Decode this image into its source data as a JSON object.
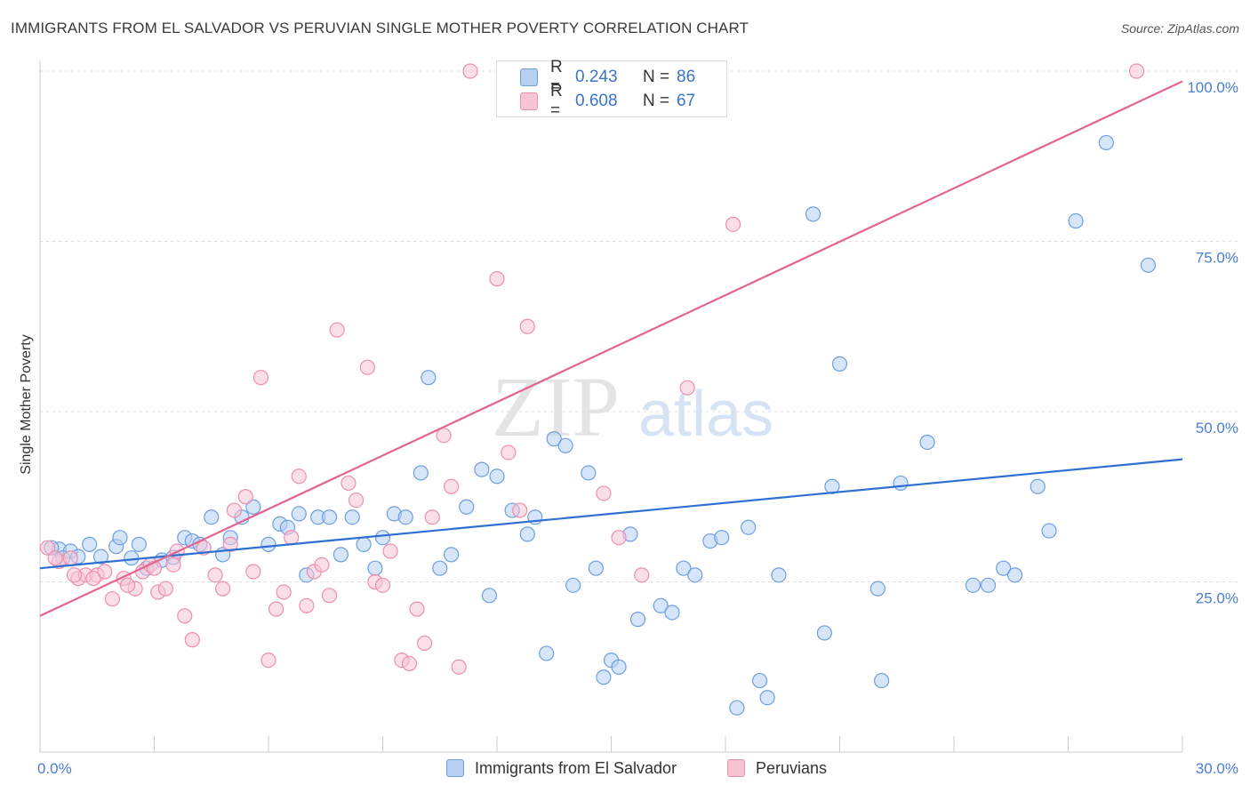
{
  "header": {
    "title": "IMMIGRANTS FROM EL SALVADOR VS PERUVIAN SINGLE MOTHER POVERTY CORRELATION CHART",
    "source": "Source: ZipAtlas.com"
  },
  "watermark": {
    "zip": "ZIP",
    "atlas": "atlas"
  },
  "colors": {
    "blue_fill": "#b7d0f2",
    "blue_stroke": "#6d9fe0",
    "blue_line": "#2e6fd1",
    "pink_fill": "#f8c5d5",
    "pink_stroke": "#ec8fae",
    "pink_line": "#e3648f",
    "tick_label": "#4a7fd4"
  },
  "legend": {
    "rows": [
      {
        "r_label": "R =",
        "r_value": "0.243",
        "n_label": "N =",
        "n_value": "86"
      },
      {
        "r_label": "R =",
        "r_value": "0.608",
        "n_label": "N =",
        "n_value": "67"
      }
    ]
  },
  "bottom_legend": {
    "series1": "Immigrants from El Salvador",
    "series2": "Peruvians"
  },
  "chart_data": {
    "type": "scatter",
    "title": "IMMIGRANTS FROM EL SALVADOR VS PERUVIAN SINGLE MOTHER POVERTY CORRELATION CHART",
    "xlabel": "",
    "ylabel": "Single Mother Poverty",
    "xlim": [
      0,
      30
    ],
    "ylim": [
      0,
      100
    ],
    "x_tick_labels": [
      "0.0%",
      "30.0%"
    ],
    "y_tick_labels": [
      "25.0%",
      "50.0%",
      "75.0%",
      "100.0%"
    ],
    "y_ticks": [
      25,
      50,
      75,
      100
    ],
    "grid": "horizontal dashed",
    "legend_position": "top-center",
    "series": [
      {
        "name": "Immigrants from El Salvador",
        "r": 0.243,
        "n": 86,
        "trend": {
          "x": [
            0,
            30
          ],
          "y": [
            27.0,
            43.0
          ]
        },
        "points": [
          [
            0.5,
            29.8
          ],
          [
            0.8,
            29.5
          ],
          [
            1.0,
            28.7
          ],
          [
            1.3,
            30.5
          ],
          [
            1.6,
            28.7
          ],
          [
            2.0,
            30.2
          ],
          [
            2.1,
            31.5
          ],
          [
            2.4,
            28.5
          ],
          [
            2.6,
            30.5
          ],
          [
            2.8,
            27.0
          ],
          [
            3.2,
            28.2
          ],
          [
            3.5,
            28.6
          ],
          [
            3.8,
            31.5
          ],
          [
            4.0,
            31.0
          ],
          [
            4.2,
            30.5
          ],
          [
            4.5,
            34.5
          ],
          [
            4.8,
            29.0
          ],
          [
            5.0,
            31.5
          ],
          [
            5.3,
            34.5
          ],
          [
            5.6,
            36.0
          ],
          [
            6.0,
            30.5
          ],
          [
            6.3,
            33.5
          ],
          [
            6.5,
            33.0
          ],
          [
            6.8,
            35.0
          ],
          [
            7.0,
            26.0
          ],
          [
            7.3,
            34.5
          ],
          [
            7.6,
            34.5
          ],
          [
            7.9,
            29.0
          ],
          [
            8.2,
            34.5
          ],
          [
            8.5,
            30.5
          ],
          [
            8.8,
            27.0
          ],
          [
            9.0,
            31.5
          ],
          [
            9.3,
            35.0
          ],
          [
            9.6,
            34.5
          ],
          [
            10.0,
            41.0
          ],
          [
            10.2,
            55.0
          ],
          [
            10.5,
            27.0
          ],
          [
            10.8,
            29.0
          ],
          [
            11.2,
            36.0
          ],
          [
            11.6,
            41.5
          ],
          [
            11.8,
            23.0
          ],
          [
            12.0,
            40.5
          ],
          [
            12.4,
            35.5
          ],
          [
            12.8,
            32.0
          ],
          [
            13.0,
            34.5
          ],
          [
            13.3,
            14.5
          ],
          [
            13.5,
            46.0
          ],
          [
            13.8,
            45.0
          ],
          [
            14.0,
            24.5
          ],
          [
            14.4,
            41.0
          ],
          [
            14.6,
            27.0
          ],
          [
            14.8,
            11.0
          ],
          [
            15.0,
            13.5
          ],
          [
            15.2,
            12.5
          ],
          [
            15.5,
            32.0
          ],
          [
            15.7,
            19.5
          ],
          [
            16.3,
            21.5
          ],
          [
            16.6,
            20.5
          ],
          [
            16.9,
            27.0
          ],
          [
            17.2,
            26.0
          ],
          [
            17.6,
            31.0
          ],
          [
            17.9,
            31.5
          ],
          [
            18.3,
            6.5
          ],
          [
            18.6,
            33.0
          ],
          [
            18.9,
            10.5
          ],
          [
            19.1,
            8.0
          ],
          [
            19.4,
            26.0
          ],
          [
            20.3,
            79.0
          ],
          [
            20.6,
            17.5
          ],
          [
            20.8,
            39.0
          ],
          [
            21.0,
            57.0
          ],
          [
            22.0,
            24.0
          ],
          [
            22.1,
            10.5
          ],
          [
            22.6,
            39.5
          ],
          [
            23.3,
            45.5
          ],
          [
            24.5,
            24.5
          ],
          [
            24.9,
            24.5
          ],
          [
            25.3,
            27.0
          ],
          [
            25.6,
            26.0
          ],
          [
            26.2,
            39.0
          ],
          [
            26.5,
            32.5
          ],
          [
            28.0,
            89.5
          ],
          [
            27.2,
            78.0
          ],
          [
            29.1,
            71.5
          ],
          [
            0.3,
            30.0
          ],
          [
            0.6,
            28.5
          ]
        ]
      },
      {
        "name": "Peruvians",
        "r": 0.608,
        "n": 67,
        "trend": {
          "x": [
            0,
            30
          ],
          "y": [
            20.0,
            98.5
          ]
        },
        "points": [
          [
            0.2,
            30.0
          ],
          [
            0.5,
            28.0
          ],
          [
            0.8,
            28.5
          ],
          [
            1.0,
            25.5
          ],
          [
            1.2,
            26.0
          ],
          [
            1.5,
            26.0
          ],
          [
            1.7,
            26.5
          ],
          [
            1.9,
            22.5
          ],
          [
            2.2,
            25.5
          ],
          [
            2.5,
            24.0
          ],
          [
            2.7,
            26.5
          ],
          [
            2.9,
            27.5
          ],
          [
            3.1,
            23.5
          ],
          [
            3.3,
            24.0
          ],
          [
            3.5,
            27.5
          ],
          [
            3.6,
            29.5
          ],
          [
            3.8,
            20.0
          ],
          [
            4.0,
            16.5
          ],
          [
            4.3,
            30.0
          ],
          [
            4.6,
            26.0
          ],
          [
            4.8,
            24.0
          ],
          [
            5.0,
            30.5
          ],
          [
            5.1,
            35.5
          ],
          [
            5.4,
            37.5
          ],
          [
            5.6,
            26.5
          ],
          [
            5.8,
            55.0
          ],
          [
            6.0,
            13.5
          ],
          [
            6.2,
            21.0
          ],
          [
            6.4,
            23.5
          ],
          [
            6.6,
            31.5
          ],
          [
            6.8,
            40.5
          ],
          [
            7.0,
            21.5
          ],
          [
            7.2,
            26.5
          ],
          [
            7.4,
            27.5
          ],
          [
            7.6,
            23.0
          ],
          [
            7.8,
            62.0
          ],
          [
            8.1,
            39.5
          ],
          [
            8.3,
            37.0
          ],
          [
            8.6,
            56.5
          ],
          [
            8.8,
            25.0
          ],
          [
            9.0,
            24.5
          ],
          [
            9.2,
            29.5
          ],
          [
            9.5,
            13.5
          ],
          [
            9.7,
            13.0
          ],
          [
            9.9,
            21.0
          ],
          [
            10.1,
            16.0
          ],
          [
            10.3,
            34.5
          ],
          [
            10.6,
            46.5
          ],
          [
            10.8,
            39.0
          ],
          [
            11.0,
            12.5
          ],
          [
            11.3,
            100.0
          ],
          [
            12.0,
            69.5
          ],
          [
            12.3,
            44.0
          ],
          [
            12.7,
            100.0
          ],
          [
            12.8,
            62.5
          ],
          [
            12.6,
            35.5
          ],
          [
            14.8,
            38.0
          ],
          [
            15.2,
            31.5
          ],
          [
            15.8,
            26.0
          ],
          [
            17.0,
            53.5
          ],
          [
            18.2,
            77.5
          ],
          [
            28.8,
            100.0
          ],
          [
            0.4,
            28.5
          ],
          [
            0.9,
            26.0
          ],
          [
            3.0,
            27.0
          ],
          [
            2.3,
            24.5
          ],
          [
            1.4,
            25.5
          ]
        ]
      }
    ]
  }
}
